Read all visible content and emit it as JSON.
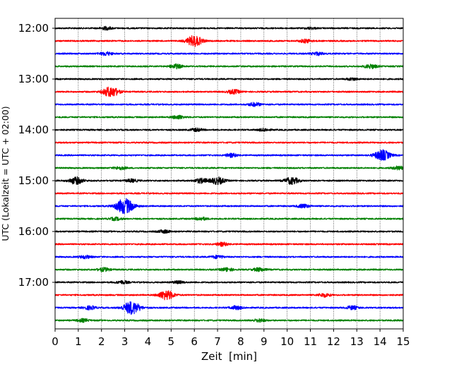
{
  "chart_data": {
    "type": "line",
    "title": "",
    "xlabel": "Zeit  [min]",
    "ylabel": "UTC (Lokalzeit = UTC + 02:00)",
    "xlim": [
      0,
      15
    ],
    "x_ticks": [
      "0",
      "1",
      "2",
      "3",
      "4",
      "5",
      "6",
      "7",
      "8",
      "9",
      "10",
      "11",
      "12",
      "13",
      "14",
      "15"
    ],
    "y_ticks": [
      {
        "label": "12:00",
        "trace": 0
      },
      {
        "label": "13:00",
        "trace": 4
      },
      {
        "label": "14:00",
        "trace": 8
      },
      {
        "label": "15:00",
        "trace": 12
      },
      {
        "label": "16:00",
        "trace": 16
      },
      {
        "label": "17:00",
        "trace": 20
      }
    ],
    "grid": "vertical dotted at each minute",
    "trace_interval_minutes": 15,
    "series": [
      {
        "start": "12:00",
        "color": "#000000",
        "events": [
          {
            "t": 2.2,
            "amp": 0.25
          },
          {
            "t": 11.0,
            "amp": 0.15
          }
        ]
      },
      {
        "start": "12:15",
        "color": "#ff0000",
        "events": [
          {
            "t": 6.0,
            "amp": 0.9
          },
          {
            "t": 10.8,
            "amp": 0.3
          }
        ]
      },
      {
        "start": "12:30",
        "color": "#0000ff",
        "events": [
          {
            "t": 2.2,
            "amp": 0.3
          },
          {
            "t": 11.3,
            "amp": 0.25
          }
        ]
      },
      {
        "start": "12:45",
        "color": "#008000",
        "events": [
          {
            "t": 5.2,
            "amp": 0.35
          },
          {
            "t": 13.6,
            "amp": 0.35
          }
        ]
      },
      {
        "start": "13:00",
        "color": "#000000",
        "events": [
          {
            "t": 12.8,
            "amp": 0.2
          }
        ]
      },
      {
        "start": "13:15",
        "color": "#ff0000",
        "events": [
          {
            "t": 2.4,
            "amp": 0.9
          },
          {
            "t": 7.7,
            "amp": 0.35
          }
        ]
      },
      {
        "start": "13:30",
        "color": "#0000ff",
        "events": [
          {
            "t": 8.6,
            "amp": 0.3
          }
        ]
      },
      {
        "start": "13:45",
        "color": "#008000",
        "events": [
          {
            "t": 5.3,
            "amp": 0.3
          }
        ]
      },
      {
        "start": "14:00",
        "color": "#000000",
        "events": [
          {
            "t": 6.1,
            "amp": 0.25
          },
          {
            "t": 9.0,
            "amp": 0.2
          }
        ]
      },
      {
        "start": "14:15",
        "color": "#ff0000",
        "events": []
      },
      {
        "start": "14:30",
        "color": "#0000ff",
        "events": [
          {
            "t": 7.6,
            "amp": 0.3
          },
          {
            "t": 14.1,
            "amp": 0.9
          }
        ]
      },
      {
        "start": "14:45",
        "color": "#008000",
        "events": [
          {
            "t": 2.8,
            "amp": 0.25
          },
          {
            "t": 14.8,
            "amp": 0.3
          }
        ]
      },
      {
        "start": "15:00",
        "color": "#000000",
        "events": [
          {
            "t": 0.9,
            "amp": 0.6
          },
          {
            "t": 7.0,
            "amp": 0.6
          },
          {
            "t": 10.2,
            "amp": 0.6
          },
          {
            "t": 6.3,
            "amp": 0.4
          },
          {
            "t": 3.3,
            "amp": 0.25
          }
        ]
      },
      {
        "start": "15:15",
        "color": "#ff0000",
        "events": []
      },
      {
        "start": "15:30",
        "color": "#0000ff",
        "events": [
          {
            "t": 3.0,
            "amp": 1.3
          },
          {
            "t": 10.7,
            "amp": 0.3
          }
        ]
      },
      {
        "start": "15:45",
        "color": "#008000",
        "events": [
          {
            "t": 2.6,
            "amp": 0.25
          },
          {
            "t": 6.3,
            "amp": 0.25
          }
        ]
      },
      {
        "start": "16:00",
        "color": "#000000",
        "events": [
          {
            "t": 4.7,
            "amp": 0.25
          }
        ]
      },
      {
        "start": "16:15",
        "color": "#ff0000",
        "events": [
          {
            "t": 7.2,
            "amp": 0.3
          }
        ]
      },
      {
        "start": "16:30",
        "color": "#0000ff",
        "events": [
          {
            "t": 1.3,
            "amp": 0.25
          },
          {
            "t": 7.0,
            "amp": 0.25
          }
        ]
      },
      {
        "start": "16:45",
        "color": "#008000",
        "events": [
          {
            "t": 2.1,
            "amp": 0.3
          },
          {
            "t": 7.4,
            "amp": 0.3
          },
          {
            "t": 8.8,
            "amp": 0.3
          }
        ]
      },
      {
        "start": "17:00",
        "color": "#000000",
        "events": [
          {
            "t": 2.9,
            "amp": 0.25
          },
          {
            "t": 5.3,
            "amp": 0.2
          }
        ]
      },
      {
        "start": "17:15",
        "color": "#ff0000",
        "events": [
          {
            "t": 4.8,
            "amp": 0.8
          },
          {
            "t": 11.6,
            "amp": 0.3
          }
        ]
      },
      {
        "start": "17:30",
        "color": "#0000ff",
        "events": [
          {
            "t": 3.3,
            "amp": 1.1
          },
          {
            "t": 7.8,
            "amp": 0.3
          },
          {
            "t": 12.8,
            "amp": 0.3
          },
          {
            "t": 1.5,
            "amp": 0.3
          }
        ]
      },
      {
        "start": "17:45",
        "color": "#008000",
        "events": [
          {
            "t": 1.2,
            "amp": 0.25
          },
          {
            "t": 8.8,
            "amp": 0.25
          }
        ]
      }
    ]
  }
}
